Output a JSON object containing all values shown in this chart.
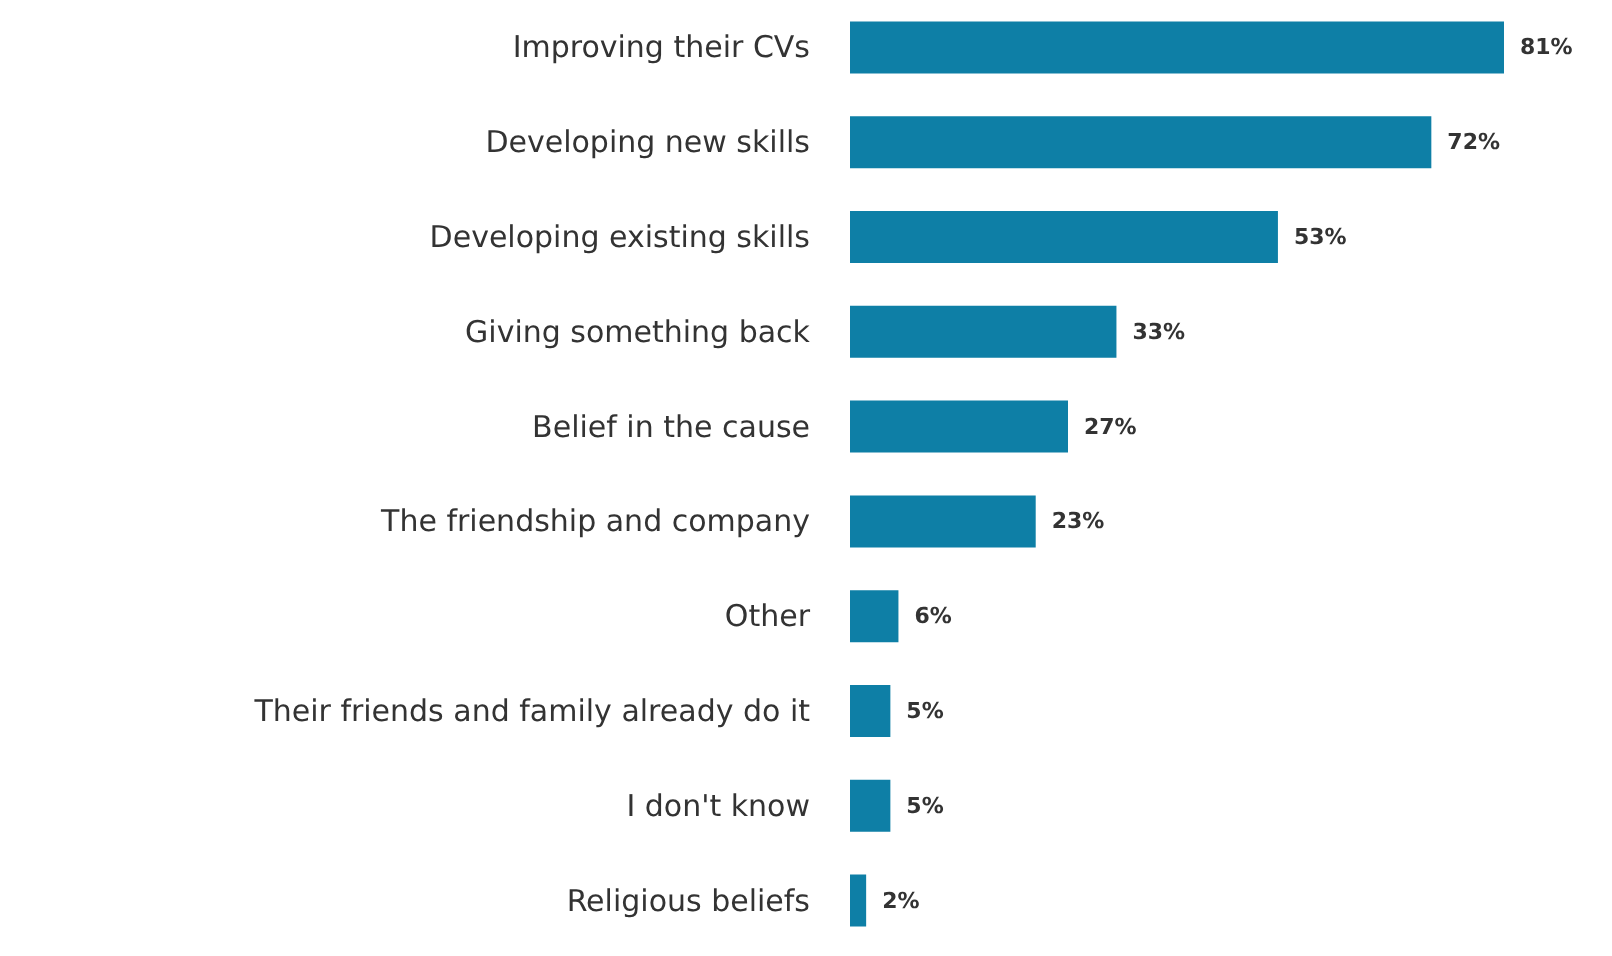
{
  "chart_data": {
    "type": "bar",
    "orientation": "horizontal",
    "categories": [
      "Improving their CVs",
      "Developing new skills",
      "Developing existing skills",
      "Giving something back",
      "Belief in the cause",
      "The friendship and company",
      "Other",
      "Their friends and family already do it",
      "I don't know",
      "Religious beliefs"
    ],
    "values": [
      81,
      72,
      53,
      33,
      27,
      23,
      6,
      5,
      5,
      2
    ],
    "value_labels": [
      "81%",
      "72%",
      "53%",
      "33%",
      "27%",
      "23%",
      "6%",
      "5%",
      "5%",
      "2%"
    ],
    "color": "#0e7fa6",
    "tick_labels": "y"
  }
}
